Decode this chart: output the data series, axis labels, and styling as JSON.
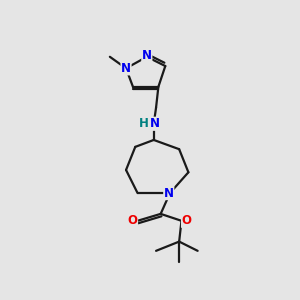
{
  "background_color": "#e5e5e5",
  "bond_color": "#1a1a1a",
  "N_color": "#0000ee",
  "O_color": "#ee0000",
  "NH_color": "#008080",
  "figsize": [
    3.0,
    3.0
  ],
  "dpi": 100,
  "xlim": [
    0,
    10
  ],
  "ylim": [
    0,
    10
  ]
}
